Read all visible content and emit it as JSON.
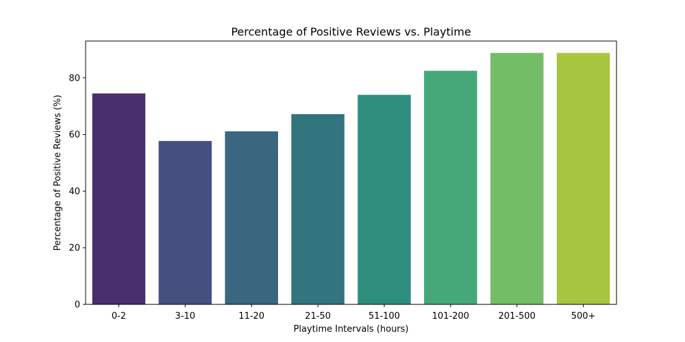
{
  "chart_data": {
    "type": "bar",
    "title": "Percentage of Positive Reviews vs. Playtime",
    "xlabel": "Playtime Intervals (hours)",
    "ylabel": "Percentage of Positive Reviews (%)",
    "categories": [
      "0-2",
      "3-10",
      "11-20",
      "21-50",
      "51-100",
      "101-200",
      "201-500",
      "500+"
    ],
    "values": [
      74.5,
      57.7,
      61.1,
      67.2,
      74.0,
      82.5,
      88.8,
      88.8
    ],
    "colors": [
      "#482f6e",
      "#45507f",
      "#3a667f",
      "#32757e",
      "#2e8e7e",
      "#46a878",
      "#73bd66",
      "#a8c53f"
    ],
    "ylim": [
      0,
      93
    ],
    "yticks": [
      0,
      20,
      40,
      60,
      80
    ],
    "grid": false,
    "legend": "none"
  }
}
